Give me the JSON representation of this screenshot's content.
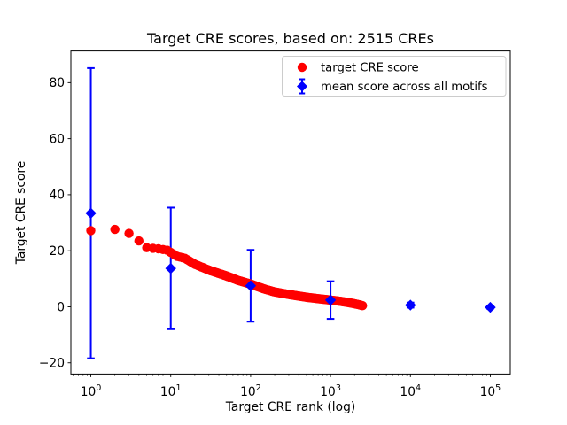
{
  "figure": {
    "kind": "matplotlib-style scatter figure",
    "background": "#ffffff"
  },
  "colors": {
    "red_series": "#ff0000",
    "blue_series": "#0000ff",
    "axis": "#000000",
    "legend_border": "#cccccc"
  },
  "chart_data": {
    "type": "scatter",
    "title": "Target CRE scores, based on: 2515 CREs",
    "xlabel": "Target CRE rank (log)",
    "ylabel": "Target CRE score",
    "n_cres": 2515,
    "xscale": "log10",
    "xlim_log10": [
      -0.25,
      5.25
    ],
    "ylim": [
      -24,
      91.3
    ],
    "xtick_exponents": [
      0,
      1,
      2,
      3,
      4,
      5
    ],
    "ytick_values": [
      -20,
      0,
      20,
      40,
      60,
      80
    ],
    "grid": false,
    "legend": {
      "position": "upper right",
      "entries": [
        "target CRE score",
        "mean score across all motifs"
      ]
    },
    "series": [
      {
        "name": "target CRE score",
        "type": "points",
        "marker": "circle",
        "color": "#ff0000",
        "rank_max": 2515,
        "curve_anchors_rank_score": [
          [
            1,
            27.2
          ],
          [
            2,
            27.6
          ],
          [
            3,
            26.2
          ],
          [
            4,
            23.5
          ],
          [
            5,
            21.1
          ],
          [
            7,
            20.7
          ],
          [
            9,
            20.2
          ],
          [
            10,
            19.4
          ],
          [
            12,
            18.0
          ],
          [
            15,
            17.3
          ],
          [
            20,
            15.2
          ],
          [
            30,
            13.1
          ],
          [
            40,
            11.9
          ],
          [
            50,
            11.0
          ],
          [
            70,
            9.4
          ],
          [
            100,
            8.1
          ],
          [
            150,
            6.3
          ],
          [
            200,
            5.3
          ],
          [
            300,
            4.4
          ],
          [
            500,
            3.4
          ],
          [
            700,
            2.9
          ],
          [
            1000,
            2.4
          ],
          [
            1300,
            2.0
          ],
          [
            1600,
            1.6
          ],
          [
            2000,
            1.1
          ],
          [
            2300,
            0.7
          ],
          [
            2515,
            0.4
          ]
        ]
      },
      {
        "name": "mean score across all motifs",
        "type": "errorbar",
        "marker": "diamond",
        "color": "#0000ff",
        "points": [
          {
            "x": 1,
            "mean": 33.4,
            "std": 51.8
          },
          {
            "x": 10,
            "mean": 13.7,
            "std": 21.7
          },
          {
            "x": 100,
            "mean": 7.5,
            "std": 12.8
          },
          {
            "x": 1000,
            "mean": 2.4,
            "std": 6.7
          },
          {
            "x": 10000,
            "mean": 0.6,
            "std": 0.9
          },
          {
            "x": 100000,
            "mean": -0.2,
            "std": 0.5
          }
        ]
      }
    ]
  }
}
